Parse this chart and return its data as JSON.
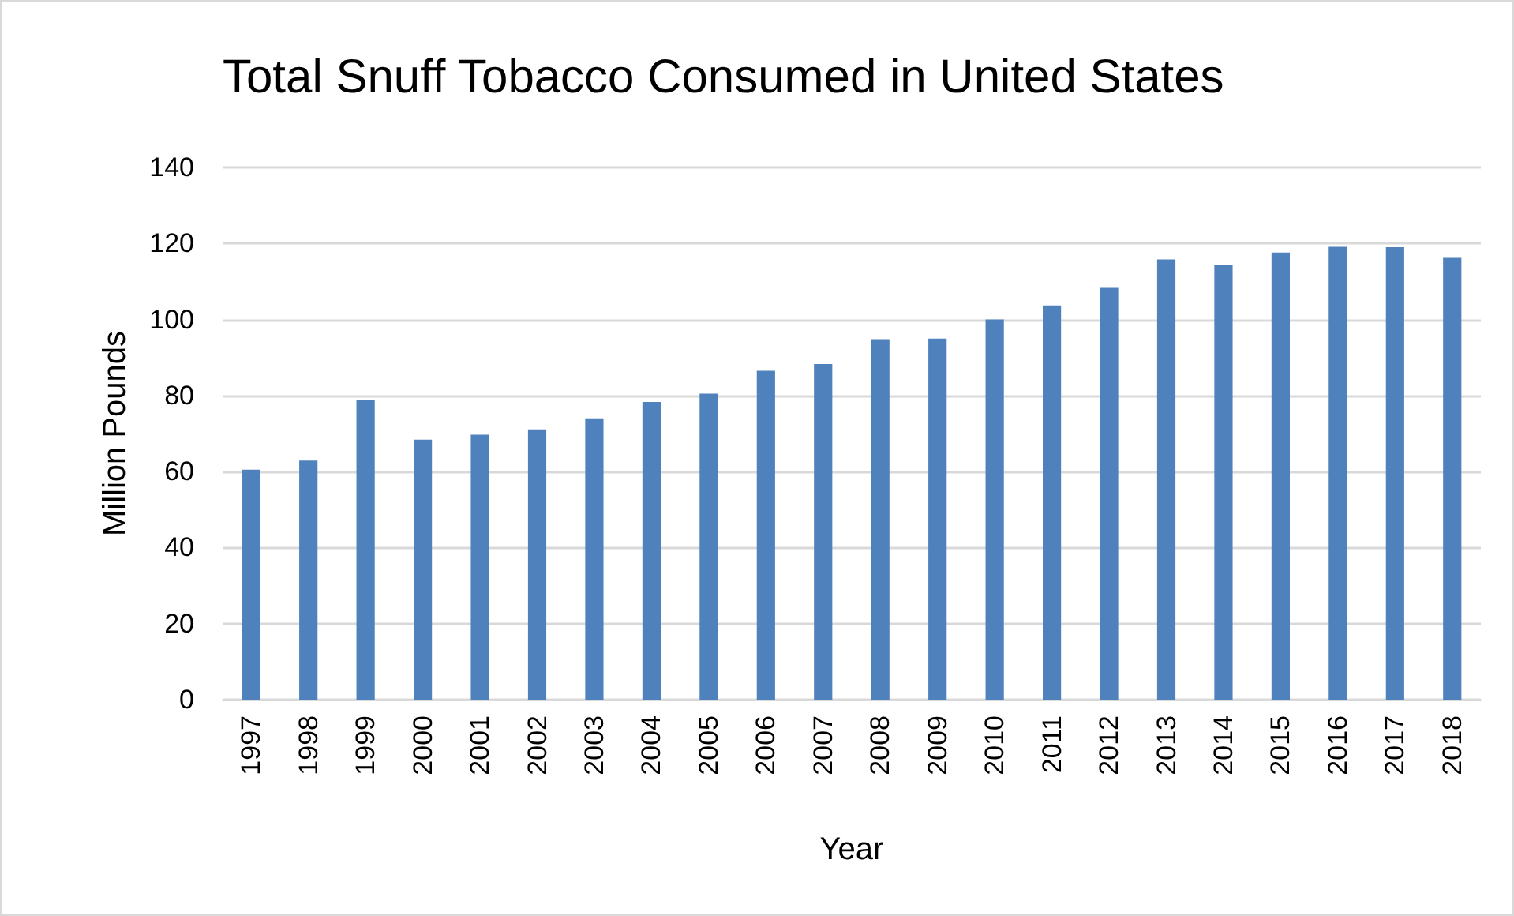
{
  "chart_data": {
    "type": "bar",
    "title": "Total Snuff Tobacco Consumed in United States",
    "xlabel": "Year",
    "ylabel": "Million Pounds",
    "categories": [
      "1997",
      "1998",
      "1999",
      "2000",
      "2001",
      "2002",
      "2003",
      "2004",
      "2005",
      "2006",
      "2007",
      "2008",
      "2009",
      "2010",
      "2011",
      "2012",
      "2013",
      "2014",
      "2015",
      "2016",
      "2017",
      "2018"
    ],
    "values": [
      60.5,
      62.9,
      78.7,
      68.4,
      69.7,
      71.1,
      74,
      78.3,
      80.5,
      86.5,
      88.3,
      94.8,
      95,
      100,
      103.7,
      108.3,
      115.8,
      114.3,
      117.6,
      119.1,
      119,
      116.2
    ],
    "color": "#4f81bd",
    "ylim": [
      0,
      140
    ],
    "yticks": [
      0,
      20,
      40,
      60,
      80,
      100,
      120,
      140
    ],
    "grid": "y"
  }
}
